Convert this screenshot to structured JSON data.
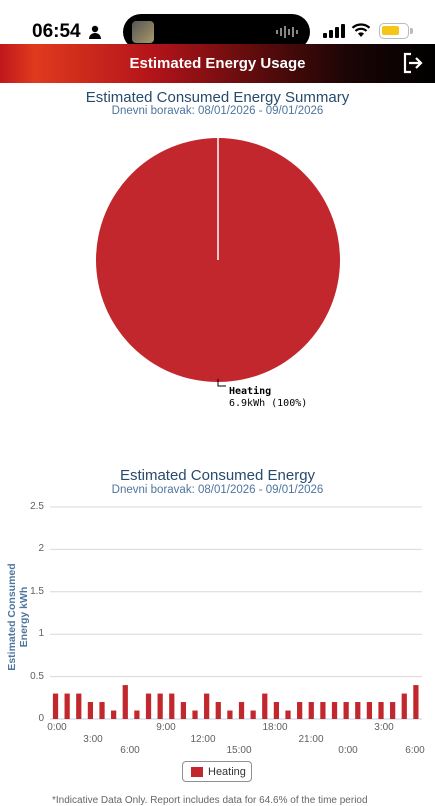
{
  "status_bar": {
    "time": "06:54"
  },
  "header": {
    "title": "Estimated Energy Usage",
    "exit_icon": "logout-icon"
  },
  "summary_chart": {
    "title": "Estimated Consumed Energy Summary",
    "subtitle": "Dnevni boravak: 08/01/2026 - 09/01/2026",
    "slice_label": "Heating",
    "slice_value": "6.9kWh (100%)",
    "color": "#c1272d"
  },
  "bar_chart": {
    "title": "Estimated Consumed Energy",
    "subtitle": "Dnevni boravak: 08/01/2026 - 09/01/2026",
    "y_title": "Estimated Consumed Energy kWh",
    "y_ticks": [
      "2.5",
      "2",
      "1.5",
      "1",
      "0.5",
      "0"
    ],
    "x_ticks_row1": [
      "0:00",
      "9:00",
      "18:00",
      "3:00"
    ],
    "x_ticks_row2": [
      "3:00",
      "12:00",
      "21:00"
    ],
    "x_ticks_row3": [
      "6:00",
      "15:00",
      "0:00",
      "6:00"
    ],
    "legend_label": "Heating",
    "footnote": "*Indicative Data Only. Report includes data for 64.6% of the time period"
  },
  "chart_data": [
    {
      "type": "pie",
      "title": "Estimated Consumed Energy Summary",
      "subtitle": "Dnevni boravak: 08/01/2026 - 09/01/2026",
      "slices": [
        {
          "name": "Heating",
          "value": 6.9,
          "percent": 100
        }
      ],
      "unit": "kWh"
    },
    {
      "type": "bar",
      "title": "Estimated Consumed Energy",
      "subtitle": "Dnevni boravak: 08/01/2026 - 09/01/2026",
      "ylabel": "Estimated Consumed Energy kWh",
      "ylim": [
        0,
        2.5
      ],
      "grid": true,
      "legend": "bottom",
      "series": [
        {
          "name": "Heating",
          "color": "#c1272d",
          "values": [
            0.3,
            0.3,
            0.3,
            0.2,
            0.2,
            0.1,
            0.4,
            0.1,
            0.3,
            0.3,
            0.3,
            0.2,
            0.1,
            0.3,
            0.2,
            0.1,
            0.2,
            0.1,
            0.3,
            0.2,
            0.1,
            0.2,
            0.2,
            0.2,
            0.2,
            0.2,
            0.2,
            0.2,
            0.2,
            0.2,
            0.3,
            0.4
          ]
        }
      ]
    }
  ]
}
